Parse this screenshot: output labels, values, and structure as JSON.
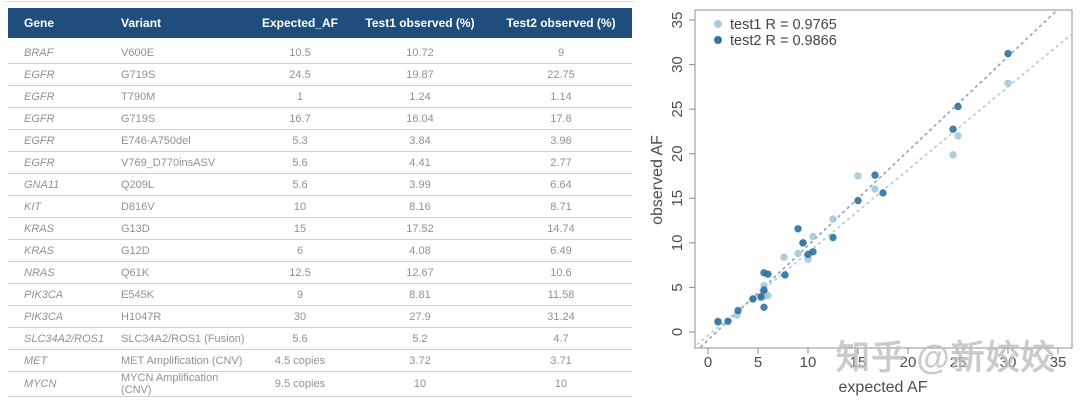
{
  "table": {
    "header_bg": "#1f4e7c",
    "columns": [
      "Gene",
      "Variant",
      "Expected_AF",
      "Test1 observed (%)",
      "Test2 observed (%)"
    ],
    "rows": [
      [
        "BRAF",
        "V600E",
        "10.5",
        "10.72",
        "9"
      ],
      [
        "EGFR",
        "G719S",
        "24.5",
        "19.87",
        "22.75"
      ],
      [
        "EGFR",
        "T790M",
        "1",
        "1.24",
        "1.14"
      ],
      [
        "EGFR",
        "G719S",
        "16.7",
        "16.04",
        "17.6"
      ],
      [
        "EGFR",
        "E746-A750del",
        "5.3",
        "3.84",
        "3.96"
      ],
      [
        "EGFR",
        "V769_D770insASV",
        "5.6",
        "4.41",
        "2.77"
      ],
      [
        "GNA11",
        "Q209L",
        "5.6",
        "3.99",
        "6.64"
      ],
      [
        "KIT",
        "D816V",
        "10",
        "8.16",
        "8.71"
      ],
      [
        "KRAS",
        "G13D",
        "15",
        "17.52",
        "14.74"
      ],
      [
        "KRAS",
        "G12D",
        "6",
        "4.08",
        "6.49"
      ],
      [
        "NRAS",
        "Q61K",
        "12.5",
        "12.67",
        "10.6"
      ],
      [
        "PIK3CA",
        "E545K",
        "9",
        "8.81",
        "11.58"
      ],
      [
        "PIK3CA",
        "H1047R",
        "30",
        "27.9",
        "31.24"
      ],
      [
        "SLC34A2/ROS1",
        "SLC34A2/ROS1 (Fusion)",
        "5.6",
        "5.2",
        "4.7"
      ],
      [
        "MET",
        "MET Amplification (CNV)",
        "4.5 copies",
        "3.72",
        "3.71"
      ],
      [
        "MYCN",
        "MYCN Amplification (CNV)",
        "9.5 copies",
        "10",
        "10"
      ]
    ]
  },
  "chart_data": {
    "type": "scatter",
    "xlabel": "expected AF",
    "ylabel": "observed AF",
    "xlim": [
      0,
      35
    ],
    "ylim": [
      0,
      35
    ],
    "x_ticks": [
      0,
      5,
      10,
      15,
      20,
      25,
      30,
      35
    ],
    "y_ticks": [
      0,
      5,
      10,
      15,
      20,
      25,
      30,
      35
    ],
    "grid": false,
    "legend_position": "top-left",
    "series": [
      {
        "name": "test1",
        "legend": "test1 R = 0.9765",
        "color": "#a3c7db",
        "points": [
          [
            1,
            1.24
          ],
          [
            2.9,
            1.9
          ],
          [
            4.5,
            3.72
          ],
          [
            5.3,
            3.84
          ],
          [
            5.6,
            3.99
          ],
          [
            5.6,
            4.41
          ],
          [
            5.6,
            5.2
          ],
          [
            6,
            4.08
          ],
          [
            7.6,
            8.4
          ],
          [
            9,
            8.81
          ],
          [
            9.5,
            10
          ],
          [
            10,
            8.16
          ],
          [
            10.5,
            10.72
          ],
          [
            12.5,
            12.67
          ],
          [
            15,
            17.52
          ],
          [
            16.7,
            16.04
          ],
          [
            24.5,
            19.87
          ],
          [
            25,
            22
          ],
          [
            30,
            27.9
          ]
        ]
      },
      {
        "name": "test2",
        "legend": "test2 R = 0.9866",
        "color": "#2a6d9c",
        "points": [
          [
            1,
            1.14
          ],
          [
            2,
            1.2
          ],
          [
            3,
            2.4
          ],
          [
            4.5,
            3.71
          ],
          [
            5.3,
            3.96
          ],
          [
            5.6,
            2.77
          ],
          [
            5.6,
            4.7
          ],
          [
            5.6,
            6.64
          ],
          [
            6,
            6.49
          ],
          [
            7.7,
            6.4
          ],
          [
            9,
            11.58
          ],
          [
            9.5,
            10
          ],
          [
            10,
            8.71
          ],
          [
            10.5,
            9
          ],
          [
            12.5,
            10.6
          ],
          [
            15,
            14.74
          ],
          [
            16.7,
            17.6
          ],
          [
            17.5,
            15.6
          ],
          [
            24.5,
            22.75
          ],
          [
            25,
            25.3
          ],
          [
            30,
            31.24
          ]
        ]
      }
    ],
    "fit_lines": [
      {
        "name": "test1-fit",
        "slope": 0.93,
        "intercept": -0.4,
        "color": "#b8ccd8"
      },
      {
        "name": "test2-fit",
        "slope": 1.06,
        "intercept": -0.9,
        "color": "#93a9b6"
      }
    ]
  },
  "watermark": {
    "text": "知乎 @新姣姣"
  }
}
